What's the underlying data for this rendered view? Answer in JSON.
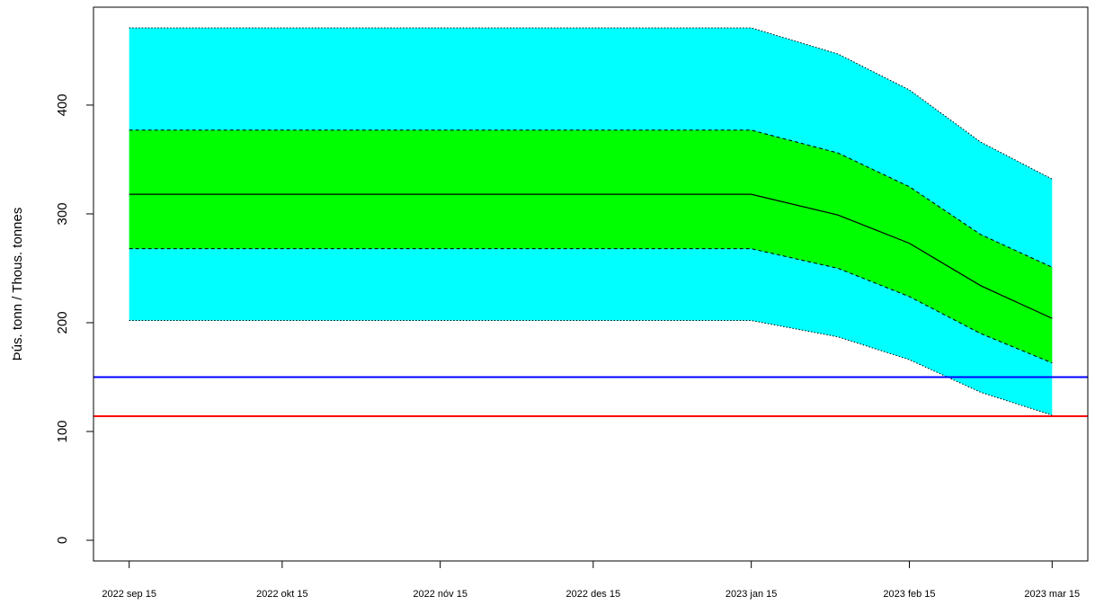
{
  "chart_data": {
    "type": "fan",
    "ylabel": "Þús. tonn  /  Thous. tonnes",
    "x": [
      "2022-09-15",
      "2022-10-15",
      "2022-11-15",
      "2022-12-15",
      "2023-01-15",
      "2023-02-01",
      "2023-02-15",
      "2023-03-01",
      "2023-03-15"
    ],
    "xlim": [
      "2022-09-08",
      "2023-03-22"
    ],
    "xticks": [
      {
        "value": "2022-09-15",
        "label": "2022 sep 15"
      },
      {
        "value": "2022-10-15",
        "label": "2022 okt 15"
      },
      {
        "value": "2022-11-15",
        "label": "2022 nóv 15"
      },
      {
        "value": "2022-12-15",
        "label": "2022 des 15"
      },
      {
        "value": "2023-01-15",
        "label": "2023 jan 15"
      },
      {
        "value": "2023-02-15",
        "label": "2023 feb 15"
      },
      {
        "value": "2023-03-15",
        "label": "2023 mar 15"
      }
    ],
    "ylim": [
      -19,
      490
    ],
    "yticks": [
      0,
      100,
      200,
      300,
      400
    ],
    "bands": [
      {
        "color": "#00ffff",
        "dash": "1.5 2",
        "upper": [
          471,
          471,
          471,
          471,
          471,
          447,
          414,
          366,
          332
        ],
        "lower": [
          202,
          202,
          202,
          202,
          202,
          187,
          166,
          136,
          115
        ]
      },
      {
        "color": "#00ff00",
        "dash": "4 3",
        "upper": [
          377,
          377,
          377,
          377,
          377,
          356,
          325,
          281,
          251
        ],
        "lower": [
          268,
          268,
          268,
          268,
          268,
          250,
          224,
          190,
          163
        ]
      }
    ],
    "median": {
      "color": "#000000",
      "values": [
        318,
        318,
        318,
        318,
        318,
        299,
        273,
        234,
        204
      ]
    },
    "hlines": [
      {
        "value": 150,
        "color": "#0000ff"
      },
      {
        "value": 114,
        "color": "#ff0000"
      }
    ]
  }
}
